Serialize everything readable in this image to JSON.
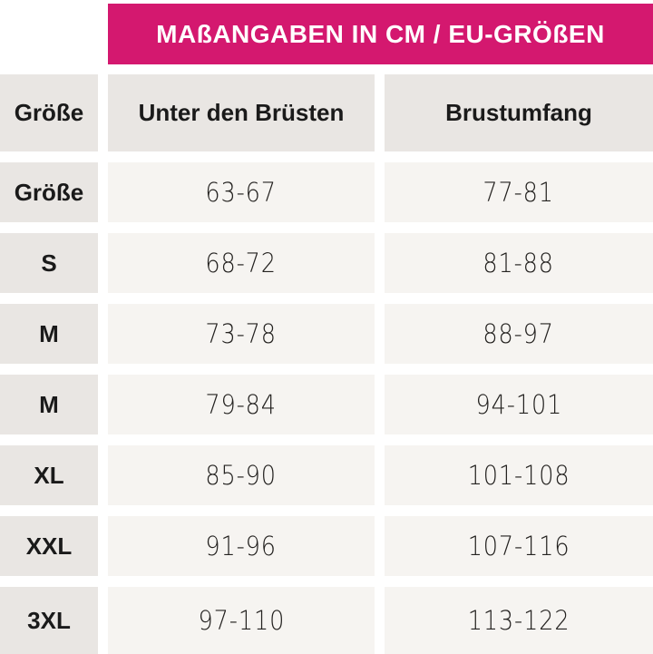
{
  "banner": {
    "title": "MAßANGABEN IN CM / EU-GRÖßEN"
  },
  "table": {
    "headers": {
      "size": "Größe",
      "underbust": "Unter den Brüsten",
      "bust": "Brustumfang"
    },
    "rows": [
      {
        "size": "Größe",
        "underbust": "63-67",
        "bust": "77-81"
      },
      {
        "size": "S",
        "underbust": "68-72",
        "bust": "81-88"
      },
      {
        "size": "M",
        "underbust": "73-78",
        "bust": "88-97"
      },
      {
        "size": "M",
        "underbust": "79-84",
        "bust": "94-101"
      },
      {
        "size": "XL",
        "underbust": "85-90",
        "bust": "101-108"
      },
      {
        "size": "XXL",
        "underbust": "91-96",
        "bust": "107-116"
      },
      {
        "size": "3XL",
        "underbust": "97-110",
        "bust": "113-122"
      }
    ]
  },
  "colors": {
    "banner_bg": "#D4186F",
    "banner_text": "#FFFFFF",
    "header_cell_bg": "#E9E6E3",
    "data_cell_bg": "#F6F4F1",
    "text": "#1A1A1A",
    "page_bg": "#FFFFFF"
  },
  "chart_data": {
    "type": "table",
    "title": "MAßANGABEN IN CM / EU-GRÖßEN",
    "columns": [
      "Größe",
      "Unter den Brüsten",
      "Brustumfang"
    ],
    "rows": [
      [
        "Größe",
        "63-67",
        "77-81"
      ],
      [
        "S",
        "68-72",
        "81-88"
      ],
      [
        "M",
        "73-78",
        "88-97"
      ],
      [
        "M",
        "79-84",
        "94-101"
      ],
      [
        "XL",
        "85-90",
        "101-108"
      ],
      [
        "XXL",
        "91-96",
        "107-116"
      ],
      [
        "3XL",
        "97-110",
        "113-122"
      ]
    ],
    "units": "cm",
    "notes": "EU sizes; last row visually clipped at bottom edge of image"
  }
}
